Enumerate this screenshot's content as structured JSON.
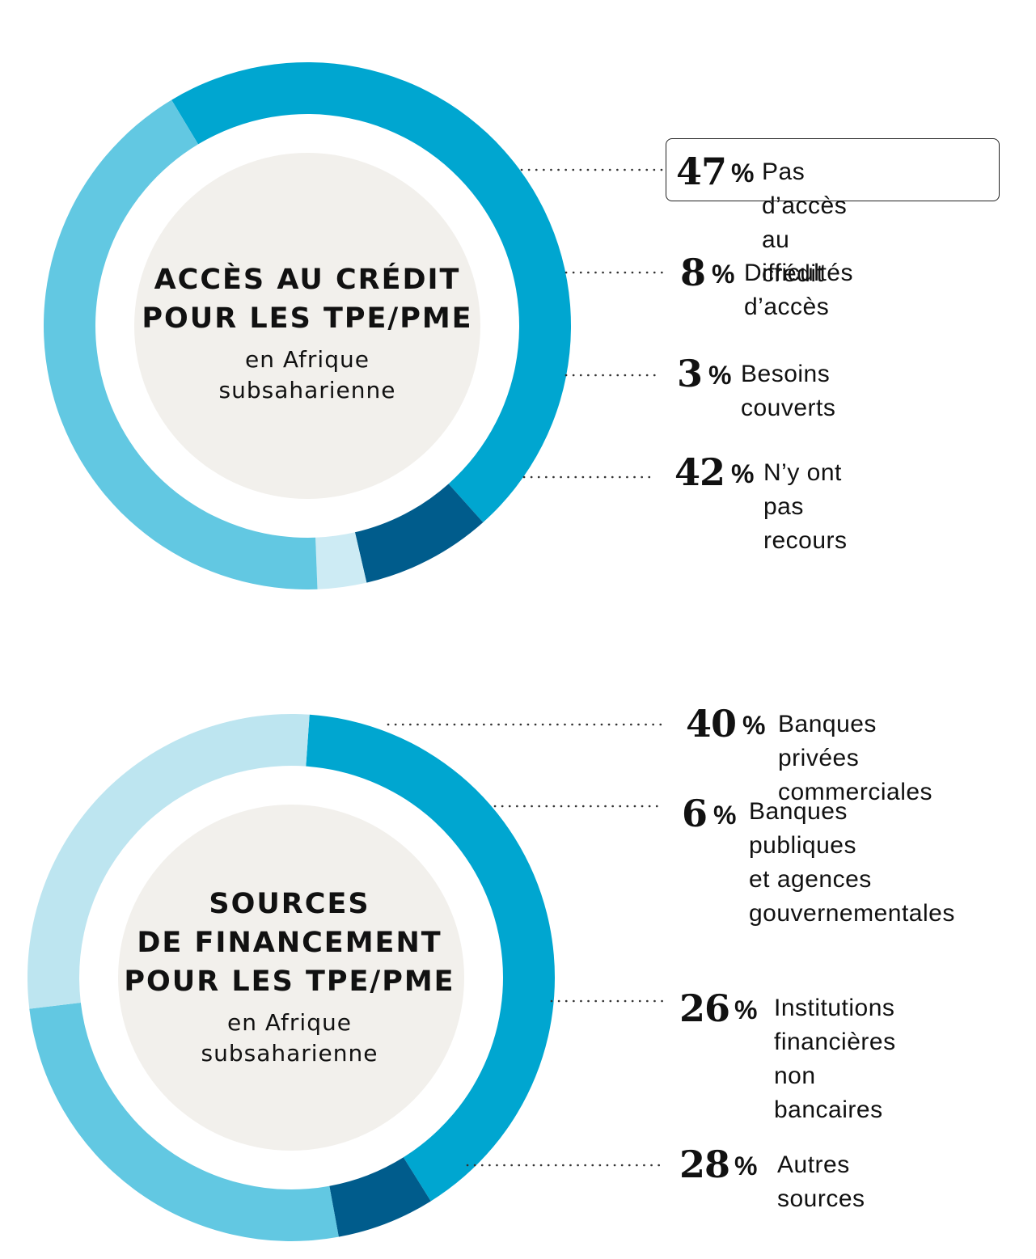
{
  "chart_data": [
    {
      "type": "pie",
      "title": "ACCÈS AU CRÉDIT\nPOUR LES TPE/PME",
      "subtitle": "en Afrique\nsubsaharienne",
      "categories": [
        "Pas d’accès au crédit",
        "Difficultés d’accès",
        "Besoins couverts",
        "N’y ont pas recours"
      ],
      "values": [
        47,
        8,
        3,
        42
      ],
      "value_labels": [
        "47",
        "8",
        "3",
        "42"
      ],
      "unit": "%",
      "colors": [
        "#00a6d0",
        "#005c8c",
        "#cdebf4",
        "#62c8e2"
      ],
      "highlighted": "Pas d’accès au crédit"
    },
    {
      "type": "pie",
      "title": "SOURCES\nDE FINANCEMENT\nPOUR LES TPE/PME",
      "subtitle": "en Afrique\nsubsaharienne",
      "categories": [
        "Banques privées\ncommerciales",
        "Banques publiques\net agences\ngouvernementales",
        "Institutions\nfinancières\nnon bancaires",
        "Autres sources"
      ],
      "values": [
        40,
        6,
        26,
        28
      ],
      "value_labels": [
        "40",
        "6",
        "26",
        "28"
      ],
      "unit": "%",
      "colors": [
        "#00a6d0",
        "#005c8c",
        "#62c8e2",
        "#bde5f0"
      ]
    }
  ],
  "colors": {
    "center_fill": "#f2f0ec",
    "dots": "#333333"
  }
}
